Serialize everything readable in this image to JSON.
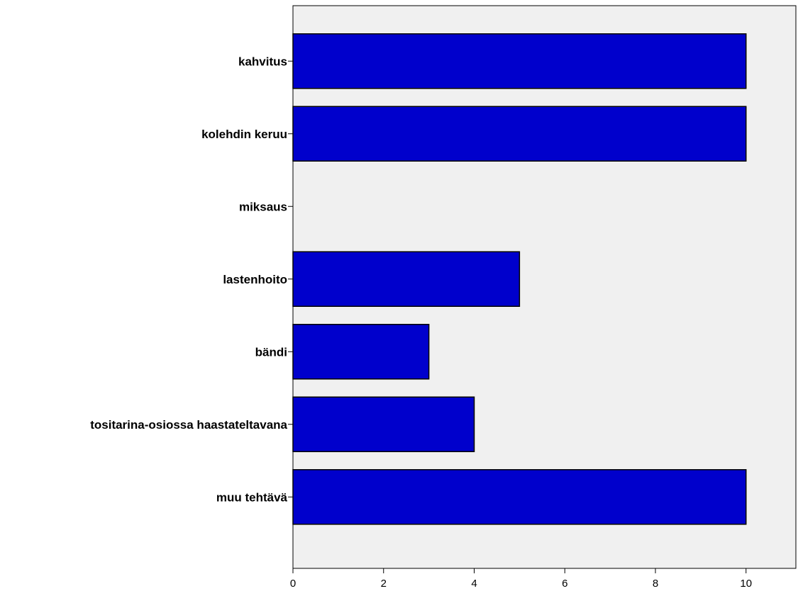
{
  "chart_data": {
    "type": "bar",
    "orientation": "horizontal",
    "categories": [
      "kahvitus",
      "kolehdin keruu",
      "miksaus",
      "lastenhoito",
      "bändi",
      "tositarina-osiossa haastateltavana",
      "muu tehtävä"
    ],
    "values": [
      10,
      10,
      0,
      5,
      3,
      4,
      10
    ],
    "xlim": [
      0,
      11.1
    ],
    "xticks": [
      0,
      2,
      4,
      6,
      8,
      10
    ],
    "title": "",
    "xlabel": "",
    "ylabel": "",
    "grid": false
  },
  "colors": {
    "bar_fill": "#0000cc",
    "bar_stroke": "#000000",
    "plot_background": "#f0f0f0",
    "axis": "#000000"
  }
}
